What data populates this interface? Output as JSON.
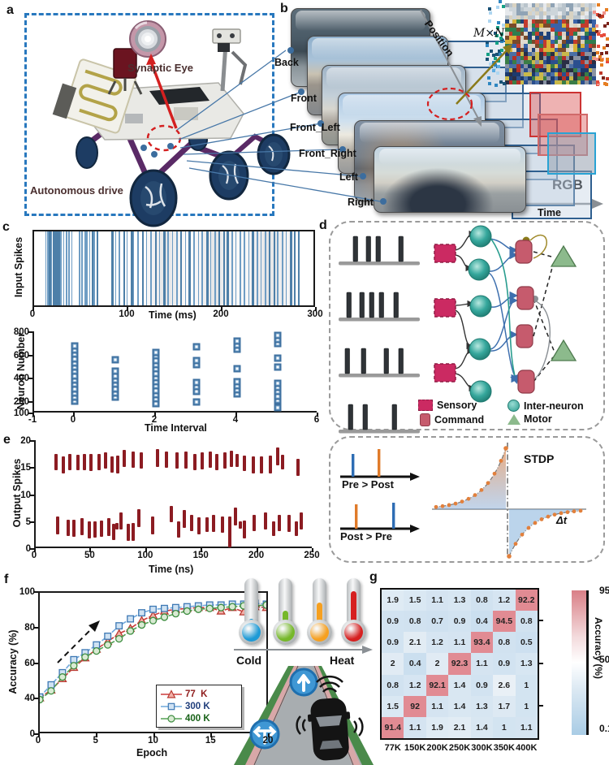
{
  "figure_title": "Synaptic-eye neuromorphic autonomous driving figure",
  "panel_letters": [
    "a",
    "b",
    "c",
    "d",
    "e",
    "f",
    "g"
  ],
  "panel_a": {
    "synaptic_eye_label": "Synaptic Eye",
    "autonomous_drive_label": "Autonomous drive"
  },
  "panel_b": {
    "camera_labels": [
      "Back",
      "Front",
      "Front_Left",
      "Front_Right",
      "Left",
      "Right"
    ],
    "position_label": "Position",
    "matrix_label": "M×N",
    "rgb_label": "RGB",
    "time_label": "Time",
    "mosaic_palette_sky": [
      "#cdd5da",
      "#e6e9ec",
      "#b9c4cc",
      "#8fa3b5",
      "#d8d2c2"
    ],
    "mosaic_palette_mid": [
      "#d9b23a",
      "#c23b2e",
      "#3a62a8",
      "#2f7d4f",
      "#d9cfc0",
      "#7a4a2a",
      "#20427a",
      "#e0dcd0"
    ],
    "mosaic_palette_low": [
      "#2b4f8e",
      "#1c3a6e",
      "#b33028",
      "#3a7d46",
      "#c9b94a",
      "#8a93a3",
      "#2a2f45",
      "#4a6fa5"
    ]
  },
  "panel_d": {
    "legend": [
      {
        "label": "Sensory",
        "color": "#cb2a62",
        "shape": "square"
      },
      {
        "label": "Command",
        "color": "#c65b6d",
        "shape": "rounded-rect"
      },
      {
        "label": "Inter-neuron",
        "color": "#35a79c",
        "shape": "circle"
      },
      {
        "label": "Motor",
        "color": "#8cba8c",
        "shape": "triangle"
      }
    ],
    "spike_trains": [
      [
        18,
        34,
        46,
        74
      ],
      [
        10,
        26,
        38,
        50,
        68
      ],
      [
        8,
        28,
        56,
        74
      ],
      [
        12,
        30,
        66
      ]
    ],
    "stdp": {
      "title": "STDP",
      "pre_post_label": "Pre > Post",
      "post_pre_label": "Post > Pre",
      "delta_t_label": "Δt",
      "pre_spike_color": "#2e6db4",
      "post_spike_color": "#e07b2a"
    }
  },
  "panel_f_context": {
    "cold_label": "Cold",
    "heat_label": "Heat",
    "thermometer_colors": [
      "#1d9ad6",
      "#76b82a",
      "#f6a020",
      "#d62020"
    ]
  },
  "chart_data": [
    {
      "id": "input_spikes",
      "type": "scatter",
      "panel": "c",
      "ylabel": "Input Spikes",
      "xlabel": "Time (ms)",
      "xlim": [
        0,
        300
      ],
      "xticks": [
        0,
        100,
        200,
        300
      ],
      "spike_color": "#6f9dc4",
      "spike_times_ms": [
        12,
        14,
        16,
        18,
        20,
        22,
        24,
        26,
        28,
        31,
        34,
        37,
        40,
        48,
        51,
        54,
        56,
        59,
        62,
        64,
        67,
        83,
        87,
        91,
        96,
        99,
        104,
        106,
        111,
        116,
        120,
        125,
        130,
        134,
        139,
        143,
        148,
        153,
        157,
        162,
        166,
        171,
        176,
        180,
        185,
        189,
        194,
        198,
        203,
        207,
        212,
        216,
        221,
        225,
        230,
        234,
        239,
        243,
        248,
        252,
        257,
        261,
        266,
        270,
        275,
        279,
        283
      ]
    },
    {
      "id": "neuron_raster",
      "type": "scatter",
      "panel": "c",
      "ylabel": "Neuron Number",
      "xlabel": "Time Interval",
      "xlim": [
        -1,
        6
      ],
      "ylim": [
        100,
        800
      ],
      "xticks": [
        -1,
        0,
        2,
        4,
        6
      ],
      "yticks": [
        100,
        200,
        400,
        600,
        800
      ],
      "points_by_interval": {
        "0": [
          195,
          232,
          269,
          306,
          343,
          380,
          417,
          454,
          491,
          528,
          565,
          602,
          639,
          676
        ],
        "1": [
          232,
          269,
          306,
          343,
          380,
          417,
          454,
          555
        ],
        "2": [
          180,
          217,
          254,
          291,
          328,
          365,
          402,
          439,
          476,
          513,
          550,
          587,
          620
        ],
        "3": [
          190,
          285,
          322,
          359,
          515,
          550,
          665
        ],
        "4": [
          258,
          295,
          332,
          369,
          475,
          645,
          682,
          714
        ],
        "5": [
          140,
          205,
          242,
          279,
          316,
          353,
          490,
          570,
          695,
          732,
          768
        ]
      }
    },
    {
      "id": "output_spikes",
      "type": "bar",
      "panel": "e",
      "ylabel": "Output Spikes",
      "xlabel": "Time (ns)",
      "xlim": [
        0,
        250
      ],
      "ylim": [
        0,
        20
      ],
      "xticks": [
        0,
        50,
        100,
        150,
        200,
        250
      ],
      "yticks": [
        0,
        5,
        10,
        15,
        20
      ],
      "bar_color": "#8c1c22",
      "bars_t_y0_y1": [
        [
          18,
          14.4,
          17.4
        ],
        [
          25,
          13.8,
          17.0
        ],
        [
          31,
          14.4,
          17.4
        ],
        [
          38,
          14.5,
          17.3
        ],
        [
          44,
          14.4,
          17.4
        ],
        [
          50,
          14.3,
          17.4
        ],
        [
          57,
          14.5,
          17.5
        ],
        [
          63,
          14.8,
          17.8
        ],
        [
          69,
          14.0,
          17.0
        ],
        [
          74,
          13.9,
          17.1
        ],
        [
          80,
          15.1,
          18.2
        ],
        [
          88,
          14.9,
          17.9
        ],
        [
          95,
          14.7,
          17.7
        ],
        [
          110,
          15.1,
          18.3
        ],
        [
          118,
          14.9,
          17.9
        ],
        [
          127,
          14.7,
          17.7
        ],
        [
          135,
          14.8,
          17.9
        ],
        [
          143,
          14.5,
          17.5
        ],
        [
          150,
          14.6,
          17.7
        ],
        [
          157,
          14.9,
          17.9
        ],
        [
          163,
          14.4,
          17.5
        ],
        [
          170,
          14.8,
          17.8
        ],
        [
          176,
          15.0,
          18.1
        ],
        [
          181,
          15.0,
          17.5
        ],
        [
          188,
          14.3,
          17.2
        ],
        [
          196,
          13.9,
          17.0
        ],
        [
          203,
          13.8,
          17.0
        ],
        [
          211,
          13.9,
          17.1
        ],
        [
          218,
          15.4,
          18.6
        ],
        [
          222,
          14.6,
          17.3
        ],
        [
          236,
          13.4,
          16.6
        ],
        [
          20,
          2.6,
          5.8
        ],
        [
          29,
          2.2,
          5.3
        ],
        [
          34,
          2.1,
          5.2
        ],
        [
          42,
          2.4,
          5.5
        ],
        [
          48,
          1.8,
          5.0
        ],
        [
          53,
          2.0,
          4.9
        ],
        [
          59,
          2.1,
          5.1
        ],
        [
          66,
          2.2,
          5.5
        ],
        [
          70,
          1.5,
          4.5
        ],
        [
          73,
          3.4,
          4.7
        ],
        [
          77,
          3.5,
          6.6
        ],
        [
          83,
          1.4,
          4.5
        ],
        [
          88,
          1.3,
          4.6
        ],
        [
          93,
          3.9,
          7.2
        ],
        [
          105,
          2.5,
          5.8
        ],
        [
          122,
          4.8,
          7.8
        ],
        [
          129,
          2.0,
          5.0
        ],
        [
          134,
          3.8,
          7.0
        ],
        [
          140,
          3.2,
          6.1
        ],
        [
          147,
          2.5,
          5.7
        ],
        [
          154,
          3.0,
          5.7
        ],
        [
          160,
          3.0,
          6.1
        ],
        [
          168,
          2.9,
          5.8
        ],
        [
          175,
          0.1,
          5.8
        ],
        [
          180,
          4.2,
          7.5
        ],
        [
          184,
          3.6,
          5.0
        ],
        [
          188,
          1.8,
          5.1
        ],
        [
          197,
          3.1,
          6.1
        ],
        [
          207,
          3.5,
          6.6
        ],
        [
          214,
          2.2,
          5.0
        ],
        [
          219,
          3.1,
          6.2
        ],
        [
          228,
          3.0,
          6.2
        ],
        [
          235,
          2.2,
          4.9
        ],
        [
          239,
          3.5,
          6.6
        ]
      ]
    },
    {
      "id": "stdp_curve",
      "type": "area",
      "panel": "d",
      "title": "STDP",
      "xlabel": "Δt",
      "tau": 26,
      "amp_potentiation": 75,
      "amp_depression": 58,
      "dot_color": "#e2803c"
    },
    {
      "id": "accuracy_vs_epoch",
      "type": "line",
      "panel": "f",
      "ylabel": "Accuracy (%)",
      "xlabel": "Epoch",
      "xlim": [
        0,
        20
      ],
      "xticks": [
        0,
        5,
        10,
        15,
        20
      ],
      "yticks": [
        0,
        40,
        60,
        80,
        100
      ],
      "broken_y_axis": true,
      "legend_position": "inside-right",
      "x": [
        0,
        1,
        2,
        3,
        4,
        5,
        6,
        7,
        8,
        9,
        10,
        11,
        12,
        13,
        14,
        15,
        16,
        17,
        18,
        19,
        20
      ],
      "series": [
        {
          "name": "77  K",
          "marker": "triangle",
          "line_color": "#cc3b3b",
          "marker_fill": "#f2b0a8",
          "marker_stroke": "#b93a32",
          "label_color": "#8f1d1d",
          "values": [
            39,
            44,
            50.5,
            57,
            62.5,
            67.5,
            72,
            76.5,
            79.5,
            84,
            87,
            89.5,
            90.5,
            91,
            91.5,
            91.5,
            89.5,
            91.5,
            89,
            92,
            91.5
          ]
        },
        {
          "name": "300 K",
          "marker": "square",
          "line_color": "#6fa8dc",
          "marker_fill": "#cfe2f3",
          "marker_stroke": "#3d78b4",
          "label_color": "#1f3d7a",
          "values": [
            40,
            47,
            54,
            61.5,
            65.5,
            70,
            75,
            81,
            85,
            88.5,
            90.5,
            91,
            91.5,
            92,
            92.5,
            93,
            93,
            93.5,
            93.5,
            94,
            93.5
          ]
        },
        {
          "name": "400 K",
          "marker": "circle",
          "line_color": "#55a055",
          "marker_fill": "#d9ead3",
          "marker_stroke": "#3e8e41",
          "label_color": "#176117",
          "values": [
            37,
            43.5,
            51.5,
            58,
            63,
            66.5,
            70,
            73.5,
            78,
            81.5,
            84,
            86,
            88,
            89.5,
            90.5,
            91,
            91.5,
            92,
            92.5,
            92.5,
            93
          ]
        }
      ]
    },
    {
      "id": "confusion_heatmap",
      "type": "heatmap",
      "panel": "g",
      "x_labels": [
        "77K",
        "150K",
        "200K",
        "250K",
        "300K",
        "350K",
        "400K"
      ],
      "values": [
        [
          "1.9",
          "1.5",
          "1.1",
          "1.3",
          "0.8",
          "1.2",
          "92.2"
        ],
        [
          "0.9",
          "0.8",
          "0.7",
          "0.9",
          "0.4",
          "94.5",
          "0.8"
        ],
        [
          "0.9",
          "2.1",
          "1.2",
          "1.1",
          "93.4",
          "0.8",
          "0.5"
        ],
        [
          "2",
          "0.4",
          "2",
          "92.3",
          "1.1",
          "0.9",
          "1.3"
        ],
        [
          "0.8",
          "1.2",
          "92.1",
          "1.4",
          "0.9",
          "2.6",
          "1"
        ],
        [
          "1.5",
          "92",
          "1.1",
          "1.4",
          "1.3",
          "1.7",
          "1"
        ],
        [
          "91.4",
          "1.1",
          "1.9",
          "2.1",
          "1.4",
          "1",
          "1.1"
        ]
      ],
      "high_color": "#e18b93",
      "low_color_dark": "#c6dcee",
      "low_color_light": "#eef3f7",
      "colorbar": {
        "label": "Accuracy (%)",
        "ticks": [
          "95",
          "50",
          "0.1"
        ],
        "gradient": [
          "#d97f86",
          "#f3dadc",
          "#ffffff",
          "#dce9f3",
          "#a9cce5"
        ]
      }
    }
  ]
}
